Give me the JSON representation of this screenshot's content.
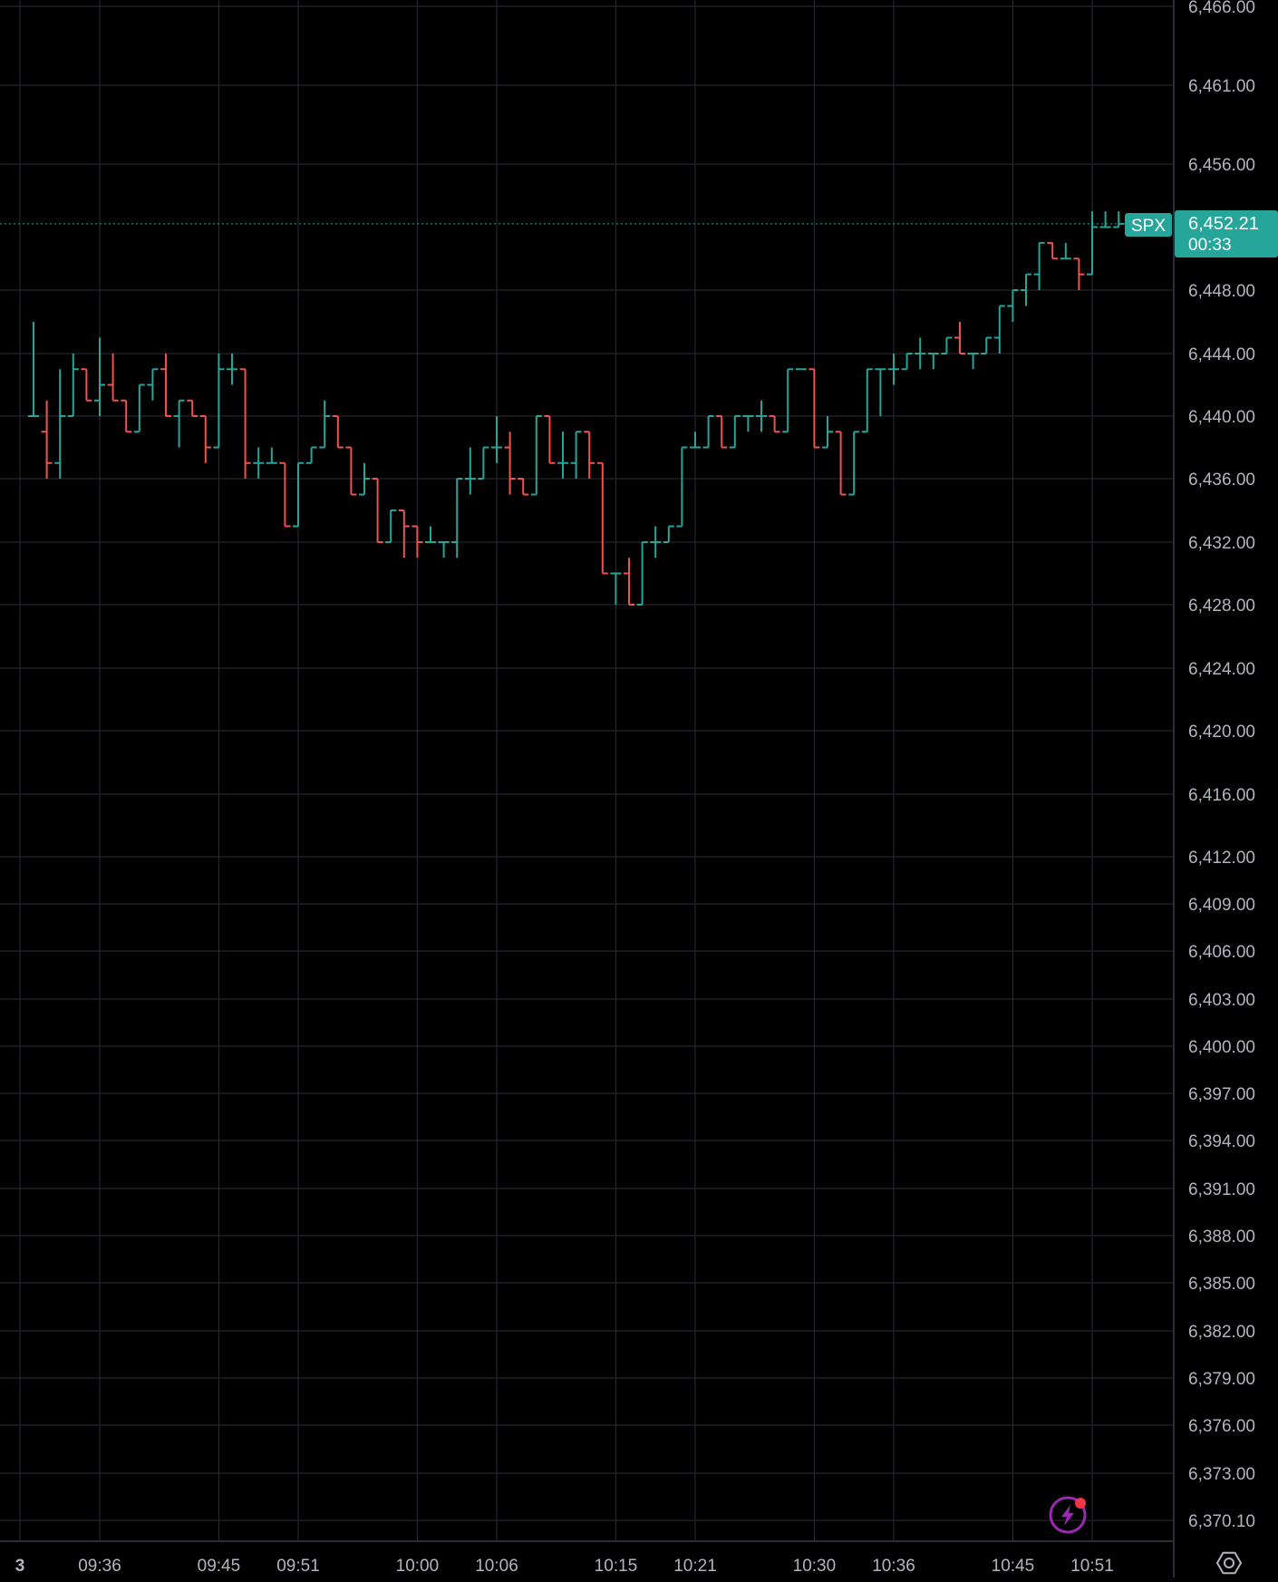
{
  "colors": {
    "background": "#000000",
    "grid": "#2a2e39",
    "axis_text": "#b2b5be",
    "up": "#26a69a",
    "down": "#ef5350",
    "price_line": "#26a69a",
    "tag_bg": "#26a69a",
    "tag_text": "#ffffff",
    "lightning_ring": "#9c27b0",
    "lightning_dot": "#f23645"
  },
  "icons": {
    "lightning": "lightning-icon",
    "settings": "settings-icon"
  },
  "price_tag": {
    "symbol": "SPX",
    "price": "6,452.21",
    "countdown": "00:33"
  },
  "chart_data": {
    "type": "ohlc",
    "symbol": "SPX",
    "last_price": 6452.21,
    "grid": true,
    "price_axis": "right",
    "y_ticks": [
      {
        "label": "6,466.00",
        "value": 6466
      },
      {
        "label": "6,461.00",
        "value": 6461
      },
      {
        "label": "6,456.00",
        "value": 6456
      },
      {
        "label": "6,448.00",
        "value": 6448
      },
      {
        "label": "6,444.00",
        "value": 6444
      },
      {
        "label": "6,440.00",
        "value": 6440
      },
      {
        "label": "6,436.00",
        "value": 6436
      },
      {
        "label": "6,432.00",
        "value": 6432
      },
      {
        "label": "6,428.00",
        "value": 6428
      },
      {
        "label": "6,424.00",
        "value": 6424
      },
      {
        "label": "6,420.00",
        "value": 6420
      },
      {
        "label": "6,416.00",
        "value": 6416
      },
      {
        "label": "6,412.00",
        "value": 6412
      },
      {
        "label": "6,409.00",
        "value": 6409
      },
      {
        "label": "6,406.00",
        "value": 6406
      },
      {
        "label": "6,403.00",
        "value": 6403
      },
      {
        "label": "6,400.00",
        "value": 6400
      },
      {
        "label": "6,397.00",
        "value": 6397
      },
      {
        "label": "6,394.00",
        "value": 6394
      },
      {
        "label": "6,391.00",
        "value": 6391
      },
      {
        "label": "6,388.00",
        "value": 6388
      },
      {
        "label": "6,385.00",
        "value": 6385
      },
      {
        "label": "6,382.00",
        "value": 6382
      },
      {
        "label": "6,379.00",
        "value": 6379
      },
      {
        "label": "6,376.00",
        "value": 6376
      },
      {
        "label": "6,373.00",
        "value": 6373
      },
      {
        "label": "6,370.10",
        "value": 6370.1
      }
    ],
    "x_ticks": [
      {
        "label": "3",
        "minute": 560.5
      },
      {
        "label": "09:36",
        "minute": 576
      },
      {
        "label": "09:45",
        "minute": 585
      },
      {
        "label": "09:51",
        "minute": 591
      },
      {
        "label": "10:00",
        "minute": 600
      },
      {
        "label": "10:06",
        "minute": 606
      },
      {
        "label": "10:15",
        "minute": 615
      },
      {
        "label": "10:21",
        "minute": 621
      },
      {
        "label": "10:30",
        "minute": 630
      },
      {
        "label": "10:36",
        "minute": 636
      },
      {
        "label": "10:45",
        "minute": 645
      },
      {
        "label": "10:51",
        "minute": 651
      }
    ],
    "bars": [
      [
        6440,
        6446,
        6440,
        6440
      ],
      [
        6439,
        6441,
        6436,
        6437
      ],
      [
        6437,
        6443,
        6436,
        6440
      ],
      [
        6440,
        6444,
        6440,
        6443
      ],
      [
        6443,
        6443,
        6441,
        6441
      ],
      [
        6441,
        6445,
        6440,
        6442
      ],
      [
        6442,
        6444,
        6441,
        6441
      ],
      [
        6441,
        6441,
        6439,
        6439
      ],
      [
        6439,
        6442,
        6439,
        6442
      ],
      [
        6442,
        6443,
        6441,
        6443
      ],
      [
        6443,
        6444,
        6440,
        6440
      ],
      [
        6440,
        6441,
        6438,
        6441
      ],
      [
        6441,
        6441,
        6440,
        6440
      ],
      [
        6440,
        6440,
        6437,
        6438
      ],
      [
        6438,
        6444,
        6438,
        6443
      ],
      [
        6443,
        6444,
        6442,
        6443
      ],
      [
        6443,
        6443,
        6436,
        6437
      ],
      [
        6437,
        6438,
        6436,
        6437
      ],
      [
        6437,
        6438,
        6437,
        6437
      ],
      [
        6437,
        6437,
        6433,
        6433
      ],
      [
        6433,
        6437,
        6433,
        6437
      ],
      [
        6437,
        6438,
        6437,
        6438
      ],
      [
        6438,
        6441,
        6438,
        6440
      ],
      [
        6440,
        6440,
        6438,
        6438
      ],
      [
        6438,
        6438,
        6435,
        6435
      ],
      [
        6435,
        6437,
        6435,
        6436
      ],
      [
        6436,
        6436,
        6432,
        6432
      ],
      [
        6432,
        6434,
        6432,
        6434
      ],
      [
        6434,
        6434,
        6431,
        6433
      ],
      [
        6433,
        6433,
        6431,
        6432
      ],
      [
        6432,
        6433,
        6432,
        6432
      ],
      [
        6432,
        6432,
        6431,
        6432
      ],
      [
        6432,
        6436,
        6431,
        6436
      ],
      [
        6436,
        6438,
        6435,
        6436
      ],
      [
        6436,
        6438,
        6436,
        6438
      ],
      [
        6438,
        6440,
        6437,
        6438
      ],
      [
        6438,
        6439,
        6435,
        6436
      ],
      [
        6436,
        6436,
        6435,
        6435
      ],
      [
        6435,
        6440,
        6435,
        6440
      ],
      [
        6440,
        6440,
        6437,
        6437
      ],
      [
        6437,
        6439,
        6436,
        6437
      ],
      [
        6437,
        6439,
        6436,
        6439
      ],
      [
        6439,
        6439,
        6436,
        6437
      ],
      [
        6437,
        6437,
        6430,
        6430
      ],
      [
        6430,
        6430,
        6428,
        6430
      ],
      [
        6430,
        6431,
        6428,
        6428
      ],
      [
        6428,
        6432,
        6428,
        6432
      ],
      [
        6432,
        6433,
        6431,
        6432
      ],
      [
        6432,
        6433,
        6432,
        6433
      ],
      [
        6433,
        6438,
        6433,
        6438
      ],
      [
        6438,
        6439,
        6438,
        6438
      ],
      [
        6438,
        6440,
        6438,
        6440
      ],
      [
        6440,
        6440,
        6438,
        6438
      ],
      [
        6438,
        6440,
        6438,
        6440
      ],
      [
        6440,
        6440,
        6439,
        6440
      ],
      [
        6440,
        6441,
        6439,
        6440
      ],
      [
        6440,
        6440,
        6439,
        6439
      ],
      [
        6439,
        6443,
        6439,
        6443
      ],
      [
        6443,
        6443,
        6443,
        6443
      ],
      [
        6443,
        6443,
        6438,
        6438
      ],
      [
        6438,
        6440,
        6438,
        6439
      ],
      [
        6439,
        6439,
        6435,
        6435
      ],
      [
        6435,
        6439,
        6435,
        6439
      ],
      [
        6439,
        6443,
        6439,
        6443
      ],
      [
        6443,
        6443,
        6440,
        6443
      ],
      [
        6443,
        6444,
        6442,
        6443
      ],
      [
        6443,
        6444,
        6443,
        6444
      ],
      [
        6444,
        6445,
        6443,
        6444
      ],
      [
        6444,
        6444,
        6443,
        6444
      ],
      [
        6444,
        6445,
        6444,
        6445
      ],
      [
        6445,
        6446,
        6444,
        6444
      ],
      [
        6444,
        6444,
        6443,
        6444
      ],
      [
        6444,
        6445,
        6444,
        6445
      ],
      [
        6445,
        6447,
        6444,
        6447
      ],
      [
        6447,
        6448,
        6446,
        6448
      ],
      [
        6448,
        6449,
        6447,
        6449
      ],
      [
        6449,
        6451,
        6448,
        6451
      ],
      [
        6451,
        6451,
        6450,
        6450
      ],
      [
        6450,
        6451,
        6450,
        6450
      ],
      [
        6450,
        6450,
        6448,
        6449
      ],
      [
        6449,
        6453,
        6449,
        6452
      ],
      [
        6452,
        6453,
        6452,
        6452
      ],
      [
        6452,
        6453,
        6452,
        6452.21
      ]
    ]
  }
}
